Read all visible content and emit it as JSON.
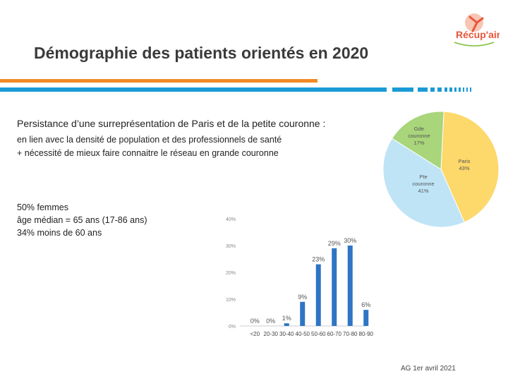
{
  "slide": {
    "title": "Démographie des patients orientés en 2020",
    "persist_line": "Persistance d’une surreprésentation de Paris et de la petite couronne :",
    "detail_lines": [
      "en lien avec la densité de population et des professionnels de santé",
      "+ nécessité de mieux faire connaitre le réseau en grande couronne"
    ],
    "stats": [
      "50% femmes",
      "âge médian = 65 ans (17-86 ans)",
      "34% moins de 60 ans"
    ],
    "footer": "AG 1er avril 2021",
    "logo": {
      "text": "Récup'air",
      "icon": "runner-logo-icon"
    }
  },
  "colors": {
    "orange": "#f08a24",
    "blue": "#1a9ad6",
    "bar": "#2e75c4",
    "paris": "#fdd86a",
    "petite": "#bfe4f6",
    "grande": "#a9d57b"
  },
  "chart_data": [
    {
      "type": "pie",
      "title": "",
      "labels": [
        [
          "Paris",
          "43%"
        ],
        [
          "Pte",
          "couronne",
          "41%"
        ],
        [
          "Gde",
          "couronne",
          "17%"
        ]
      ],
      "values": [
        43,
        41,
        17
      ],
      "colors": [
        "#fdd86a",
        "#bfe4f6",
        "#a9d57b"
      ]
    },
    {
      "type": "bar",
      "title": "",
      "categories": [
        "<20",
        "20-30",
        "30-40",
        "40-50",
        "50-60",
        "60-70",
        "70-80",
        "80-90"
      ],
      "values": [
        0,
        0,
        1,
        9,
        23,
        29,
        30,
        6
      ],
      "data_labels": [
        "0%",
        "0%",
        "1%",
        "9%",
        "23%",
        "29%",
        "30%",
        "6%"
      ],
      "y_ticks": [
        "0%",
        "10%",
        "20%",
        "30%",
        "40%"
      ],
      "ylim": [
        0,
        40
      ],
      "grid": false
    }
  ]
}
